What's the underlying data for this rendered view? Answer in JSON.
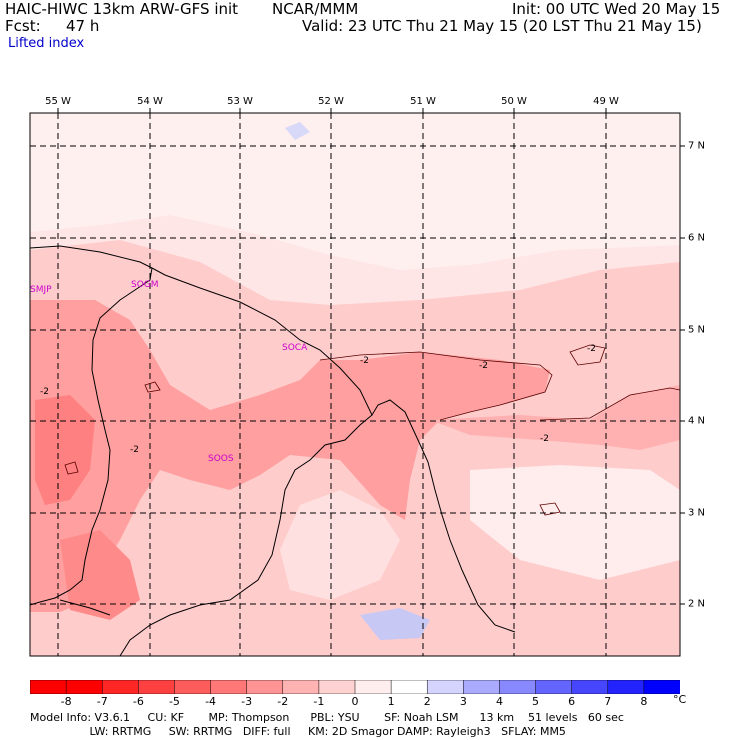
{
  "header": {
    "model": "HAIC-HIWC 13km ARW-GFS init",
    "org": "NCAR/MMM",
    "fcst_label": "Fcst:",
    "fcst_value": "47 h",
    "init": "Init: 00 UTC Wed 20 May 15",
    "valid": "Valid: 23 UTC Thu 21 May 15 (20 LST Thu 21 May 15)",
    "field": "Lifted index"
  },
  "map": {
    "lon_labels": [
      "55 W",
      "54 W",
      "53 W",
      "52 W",
      "51 W",
      "50 W",
      "49 W"
    ],
    "lat_labels": [
      "7 N",
      "6 N",
      "5 N",
      "4 N",
      "3 N",
      "2 N"
    ],
    "stations": [
      "SMJP",
      "SOGM",
      "SOCA",
      "SOOS"
    ],
    "contour_labels": [
      "-2",
      "-2",
      "-2",
      "-2",
      "-2",
      "-2"
    ]
  },
  "colorbar": {
    "ticks": [
      "-8",
      "-7",
      "-6",
      "-5",
      "-4",
      "-3",
      "-2",
      "-1",
      "0",
      "1",
      "2",
      "3",
      "4",
      "5",
      "6",
      "7",
      "8"
    ],
    "unit": "°C",
    "colors": [
      "#ff0000",
      "#ff2626",
      "#ff4040",
      "#ff5c5c",
      "#ff7777",
      "#ff9494",
      "#ffb3b3",
      "#ffd2d2",
      "#ffeeee",
      "#ffffff",
      "#d4d4ff",
      "#aaaaff",
      "#8888ff",
      "#6464ff",
      "#4646ff",
      "#2323ff",
      "#0000ff"
    ]
  },
  "footer": {
    "line1": "Model Info: V3.6.1     CU: KF       MP: Thompson      PBL: YSU       SF: Noah LSM      13 km    51 levels   60 sec",
    "line2": "                 LW: RRTMG     SW: RRTMG   DIFF: full     KM: 2D Smagor DAMP: Rayleigh3   SFLAY: MM5"
  }
}
